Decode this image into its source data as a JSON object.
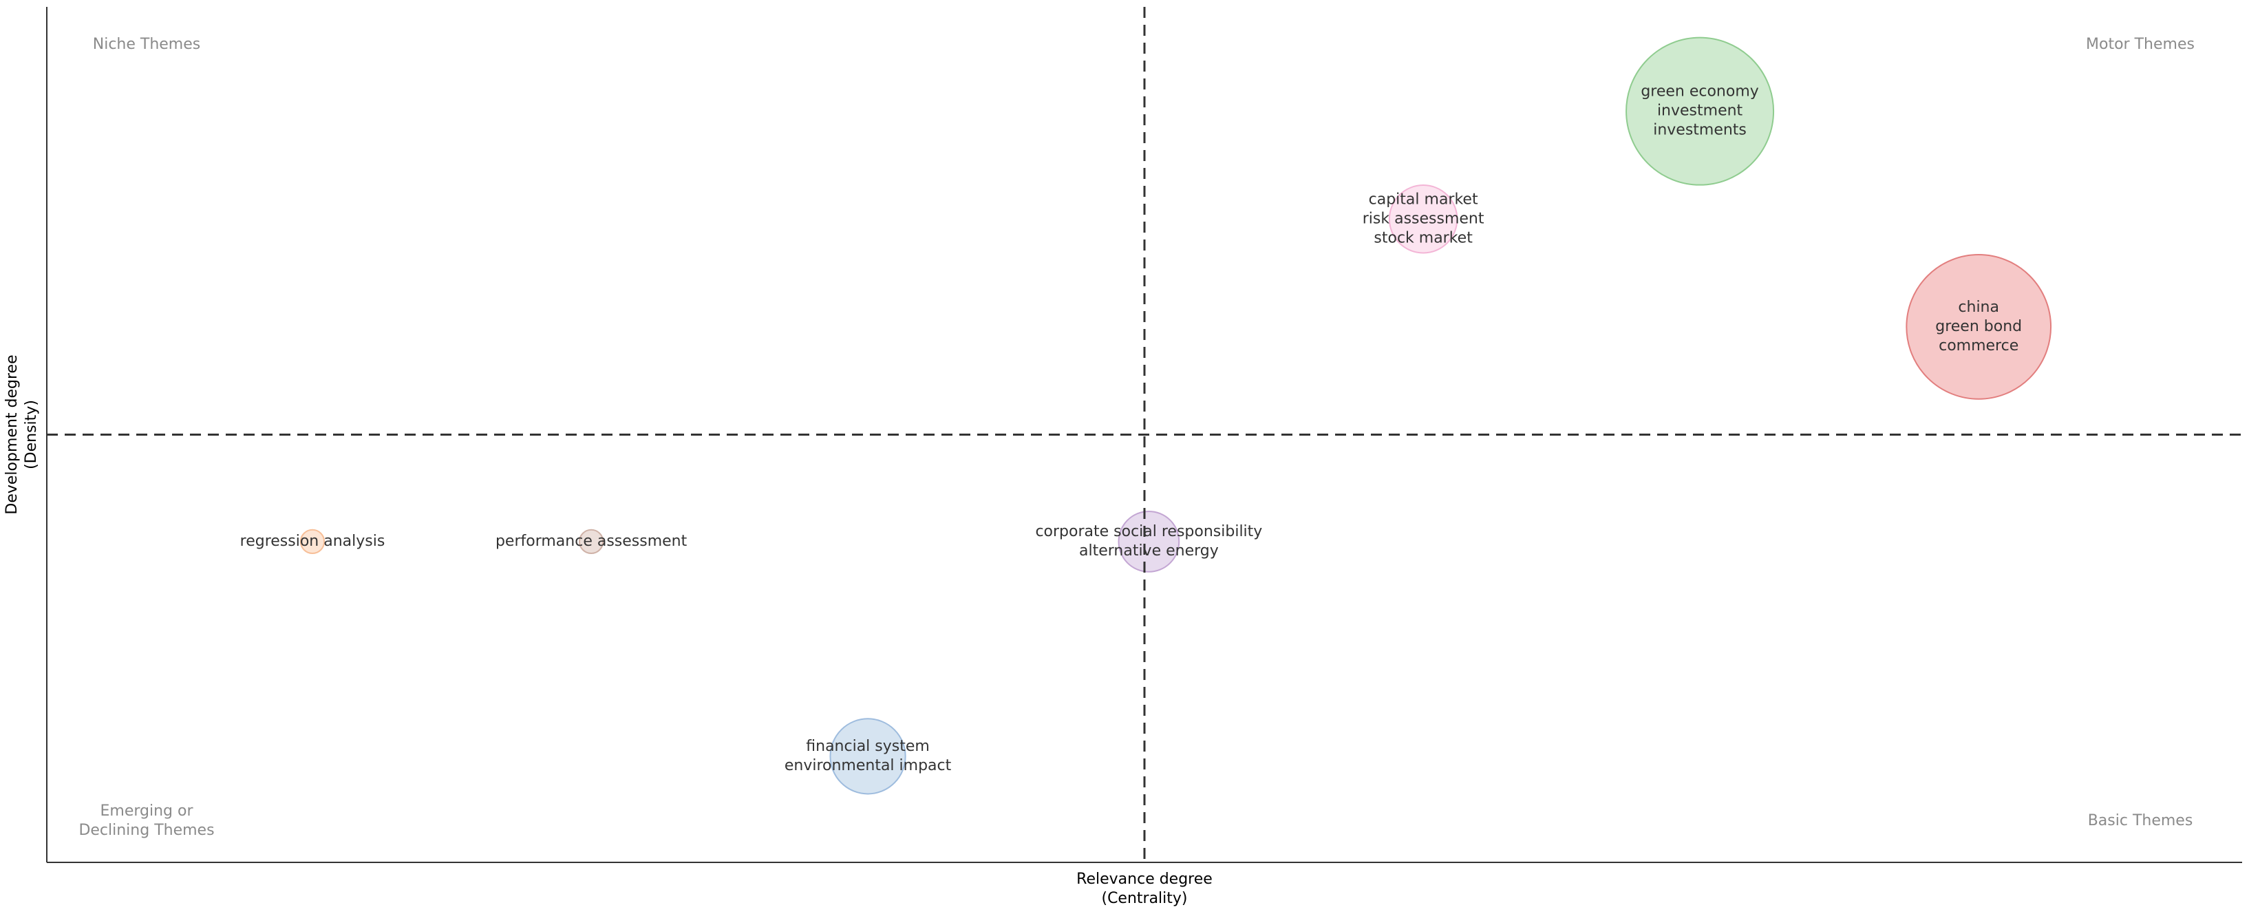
{
  "chart_data": {
    "type": "scatter",
    "title": "",
    "xlabel": [
      "Relevance degree",
      "(Centrality)"
    ],
    "ylabel": [
      "Development degree",
      "(Density)"
    ],
    "xlim": [
      0,
      1
    ],
    "ylim": [
      0,
      1
    ],
    "x_divider": 0.5,
    "y_divider": 0.5,
    "grid": false,
    "quadrant_labels": {
      "top_left": [
        "Niche Themes"
      ],
      "top_right": [
        "Motor Themes"
      ],
      "bottom_left": [
        "Emerging or",
        "Declining Themes"
      ],
      "bottom_right": [
        "Basic Themes"
      ]
    },
    "points": [
      {
        "x": 0.753,
        "y": 0.878,
        "size": 1.0,
        "color": "#a8d8a8",
        "edge": "#8fcc8f",
        "labels": [
          "green economy",
          "investment",
          "investments"
        ]
      },
      {
        "x": 0.627,
        "y": 0.752,
        "size": 0.46,
        "color": "#f9cde4",
        "edge": "#f3b5d6",
        "labels": [
          "capital market",
          "risk assessment",
          "stock market"
        ]
      },
      {
        "x": 0.88,
        "y": 0.626,
        "size": 0.98,
        "color": "#ee9a9a",
        "edge": "#e27e7e",
        "labels": [
          "china",
          "green bond",
          "commerce"
        ]
      },
      {
        "x": 0.121,
        "y": 0.375,
        "size": 0.16,
        "color": "#fcd0b0",
        "edge": "#f7bf98",
        "labels": [
          "regression analysis"
        ]
      },
      {
        "x": 0.248,
        "y": 0.375,
        "size": 0.16,
        "color": "#dcc4bb",
        "edge": "#cfb2a7",
        "labels": [
          "performance assessment"
        ]
      },
      {
        "x": 0.502,
        "y": 0.375,
        "size": 0.41,
        "color": "#d4bde0",
        "edge": "#c3a6d3",
        "labels": [
          "corporate social responsibility",
          "alternative energy"
        ]
      },
      {
        "x": 0.374,
        "y": 0.124,
        "size": 0.51,
        "color": "#b5cde6",
        "edge": "#9ebcde",
        "labels": [
          "financial system",
          "environmental impact"
        ]
      }
    ]
  }
}
